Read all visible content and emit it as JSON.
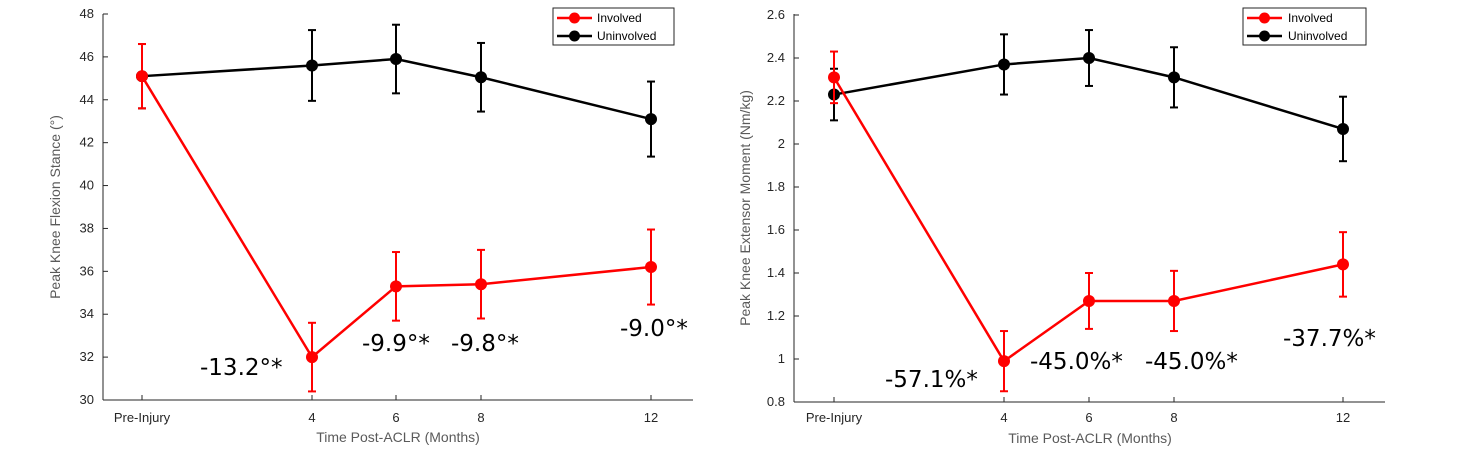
{
  "chart_data": [
    {
      "type": "line",
      "title": "",
      "xlabel": "Time Post-ACLR (Months)",
      "ylabel": "Peak Knee Flexion Stance (°)",
      "x": [
        0,
        4,
        6,
        8,
        12
      ],
      "x_tick_labels": [
        "Pre-Injury",
        "4",
        "6",
        "8",
        "12"
      ],
      "ylim": [
        30,
        48
      ],
      "y_ticks": [
        30,
        32,
        34,
        36,
        38,
        40,
        42,
        44,
        46,
        48
      ],
      "series": [
        {
          "name": "Involved",
          "color": "#ff0000",
          "values": [
            45.1,
            32.0,
            35.3,
            35.4,
            36.2
          ],
          "errors": [
            1.5,
            1.6,
            1.6,
            1.6,
            1.75
          ]
        },
        {
          "name": "Uninvolved",
          "color": "#000000",
          "values": [
            45.1,
            45.6,
            45.9,
            45.05,
            43.1
          ],
          "errors": [
            1.5,
            1.65,
            1.6,
            1.6,
            1.75
          ]
        }
      ],
      "annotations": [
        "-13.2°*",
        "-9.9°*",
        "-9.8°*",
        "-9.0°*"
      ],
      "legend_position": "top-right"
    },
    {
      "type": "line",
      "title": "",
      "xlabel": "Time Post-ACLR (Months)",
      "ylabel": "Peak Knee Extensor Moment (Nm/kg)",
      "x": [
        0,
        4,
        6,
        8,
        12
      ],
      "x_tick_labels": [
        "Pre-Injury",
        "4",
        "6",
        "8",
        "12"
      ],
      "ylim": [
        0.8,
        2.6
      ],
      "y_ticks": [
        0.8,
        1,
        1.2,
        1.4,
        1.6,
        1.8,
        2,
        2.2,
        2.4,
        2.6
      ],
      "y_tick_labels": [
        "0.8",
        "1",
        "1.2",
        "1.4",
        "1.6",
        "1.8",
        "2",
        "2.2",
        "2.4",
        "2.6"
      ],
      "series": [
        {
          "name": "Involved",
          "color": "#ff0000",
          "values": [
            2.31,
            0.99,
            1.27,
            1.27,
            1.44
          ],
          "errors": [
            0.12,
            0.14,
            0.13,
            0.14,
            0.15
          ]
        },
        {
          "name": "Uninvolved",
          "color": "#000000",
          "values": [
            2.23,
            2.37,
            2.4,
            2.31,
            2.07
          ],
          "errors": [
            0.12,
            0.14,
            0.13,
            0.14,
            0.15
          ]
        }
      ],
      "annotations": [
        "-57.1%*",
        "-45.0%*",
        "-45.0%*",
        "-37.7%*"
      ],
      "legend_position": "top-right"
    }
  ]
}
